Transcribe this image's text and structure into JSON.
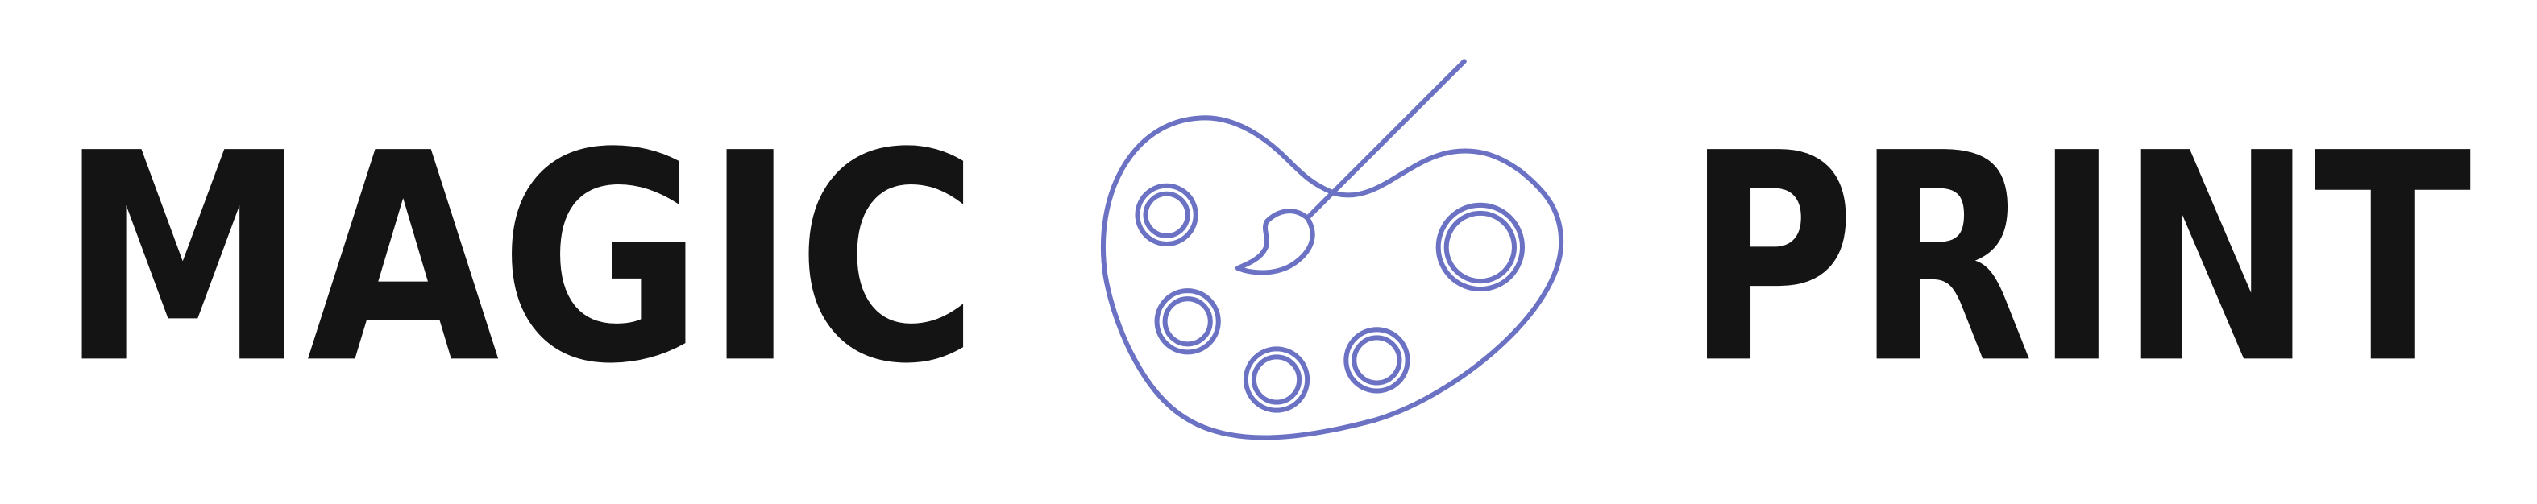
{
  "logo": {
    "words": [
      "MAGIC",
      "PRINT"
    ]
  }
}
